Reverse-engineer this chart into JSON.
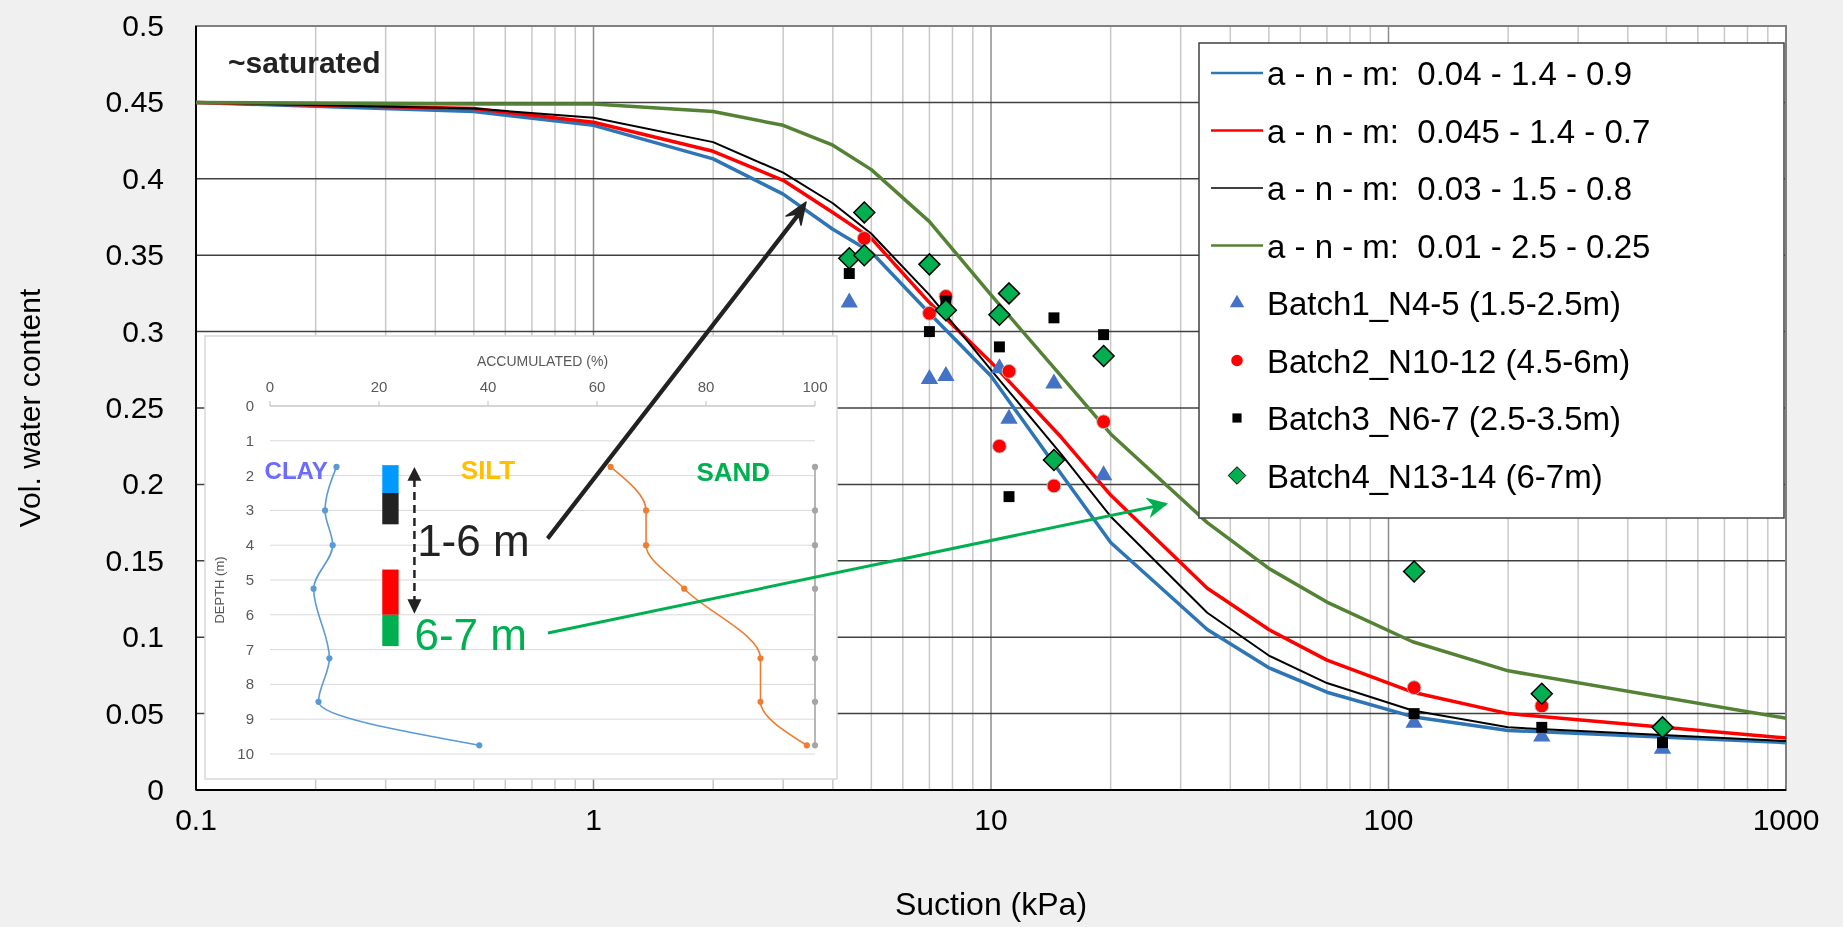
{
  "chart_data": [
    {
      "type": "line",
      "xlabel": "Suction (kPa)",
      "ylabel": "Vol. water content",
      "annotations": [
        "~saturated"
      ],
      "log": "x",
      "xlim": [
        0.1,
        1000
      ],
      "xticks": [
        0.1,
        1,
        10,
        100,
        1000
      ],
      "ylim": [
        0,
        0.5
      ],
      "yticks": [
        0,
        0.05,
        0.1,
        0.15,
        0.2,
        0.25,
        0.3,
        0.35,
        0.4,
        0.45,
        0.5
      ],
      "grid": true,
      "legend": "top right",
      "series": [
        {
          "name": "a - n - m:  0.04 - 1.4 - 0.9",
          "color": "#2e75b6",
          "marker": "none",
          "x": [
            0.1,
            0.5,
            1,
            2,
            3,
            4,
            5,
            7,
            10,
            15,
            20,
            35,
            50,
            70,
            115,
            200,
            1000
          ],
          "values": [
            0.45,
            0.444,
            0.435,
            0.413,
            0.39,
            0.367,
            0.352,
            0.312,
            0.271,
            0.207,
            0.162,
            0.105,
            0.08,
            0.064,
            0.048,
            0.039,
            0.031
          ]
        },
        {
          "name": "a - n - m:  0.045 - 1.4 - 0.7",
          "color": "#ff0000",
          "marker": "none",
          "x": [
            0.1,
            0.5,
            1,
            2,
            3,
            4,
            5,
            7,
            10,
            15,
            20,
            35,
            50,
            70,
            115,
            200,
            1000
          ],
          "values": [
            0.45,
            0.446,
            0.437,
            0.418,
            0.399,
            0.378,
            0.361,
            0.319,
            0.28,
            0.231,
            0.193,
            0.132,
            0.105,
            0.085,
            0.064,
            0.05,
            0.034
          ]
        },
        {
          "name": "a - n - m:  0.03 - 1.5 - 0.8",
          "color": "#000000",
          "marker": "none",
          "x": [
            0.1,
            0.5,
            1,
            2,
            3,
            4,
            5,
            7,
            10,
            15,
            20,
            35,
            50,
            70,
            115,
            200,
            1000
          ],
          "values": [
            0.45,
            0.446,
            0.44,
            0.424,
            0.404,
            0.384,
            0.364,
            0.324,
            0.275,
            0.22,
            0.179,
            0.116,
            0.088,
            0.07,
            0.052,
            0.041,
            0.032
          ]
        },
        {
          "name": "a - n - m:  0.01 - 2.5 - 0.25",
          "color": "#548235",
          "marker": "none",
          "x": [
            0.1,
            0.5,
            1,
            2,
            3,
            4,
            5,
            7,
            10,
            15,
            20,
            35,
            50,
            70,
            115,
            200,
            1000
          ],
          "values": [
            0.45,
            0.449,
            0.449,
            0.444,
            0.435,
            0.422,
            0.406,
            0.372,
            0.324,
            0.271,
            0.233,
            0.175,
            0.145,
            0.123,
            0.097,
            0.078,
            0.047
          ]
        },
        {
          "type": "scatter",
          "name": "Batch1_N4-5 (1.5-2.5m)",
          "color": "#4472c4",
          "marker": "triangle",
          "x": [
            4.4,
            7,
            7.7,
            10.5,
            11.1,
            14.4,
            19.2,
            116,
            243,
            489
          ],
          "values": [
            0.319,
            0.269,
            0.271,
            0.276,
            0.243,
            0.266,
            0.206,
            0.044,
            0.035,
            0.027
          ]
        },
        {
          "type": "scatter",
          "name": "Batch2_N10-12 (4.5-6m)",
          "color": "#ff0000",
          "marker": "circle",
          "x": [
            4.8,
            7,
            7.7,
            10.5,
            11.1,
            14.4,
            19.2,
            116,
            243
          ],
          "values": [
            0.361,
            0.312,
            0.323,
            0.225,
            0.274,
            0.199,
            0.241,
            0.067,
            0.055
          ]
        },
        {
          "type": "scatter",
          "name": "Batch3_N6-7 (2.5-3.5m)",
          "color": "#000000",
          "marker": "square",
          "x": [
            4.4,
            7,
            7.7,
            10.5,
            11.1,
            14.4,
            19.2,
            116,
            243,
            489
          ],
          "values": [
            0.338,
            0.3,
            0.32,
            0.29,
            0.192,
            0.309,
            0.298,
            0.05,
            0.041,
            0.031
          ]
        },
        {
          "type": "scatter",
          "name": "Batch4_N13-14 (6-7m)",
          "color": "#00b050",
          "marker": "diamond",
          "x": [
            4.4,
            4.8,
            4.8,
            7,
            7.7,
            10.5,
            11.1,
            14.4,
            19.2,
            116,
            243,
            489
          ],
          "values": [
            0.348,
            0.378,
            0.35,
            0.344,
            0.314,
            0.311,
            0.325,
            0.216,
            0.284,
            0.143,
            0.063,
            0.041
          ]
        }
      ]
    },
    {
      "type": "line",
      "orientation": "horizontal",
      "xlabel": "ACCUMULATED (%)",
      "ylabel": "DEPTH (m)",
      "xlim": [
        0,
        100
      ],
      "xticks": [
        0,
        20,
        40,
        60,
        80,
        100
      ],
      "ylim": [
        10,
        0
      ],
      "yticks": [
        0,
        1,
        2,
        3,
        4,
        5,
        6,
        7,
        8,
        9,
        10
      ],
      "grid": "y",
      "marker": "circle",
      "annotations": [
        "CLAY",
        "SILT",
        "SAND",
        "1-6 m",
        "6-7 m"
      ],
      "series": [
        {
          "color": "#5b9bd5",
          "x": [
            1.75,
            3,
            4,
            5.25,
            7.25,
            8.5,
            9.75
          ],
          "values": [
            12.2,
            10.1,
            11.5,
            8,
            10.9,
            8.9,
            38.4
          ]
        },
        {
          "color": "#ed7d31",
          "x": [
            1.75,
            3,
            4,
            5.25,
            7.25,
            8.5,
            9.75
          ],
          "values": [
            62.5,
            69,
            69,
            76,
            90,
            90,
            98.5
          ]
        },
        {
          "color": "#a5a5a5",
          "x": [
            1.75,
            3,
            4,
            5.25,
            7.25,
            8.5,
            9.75
          ],
          "values": [
            100,
            100,
            100,
            100,
            100,
            100,
            100
          ]
        }
      ]
    }
  ]
}
